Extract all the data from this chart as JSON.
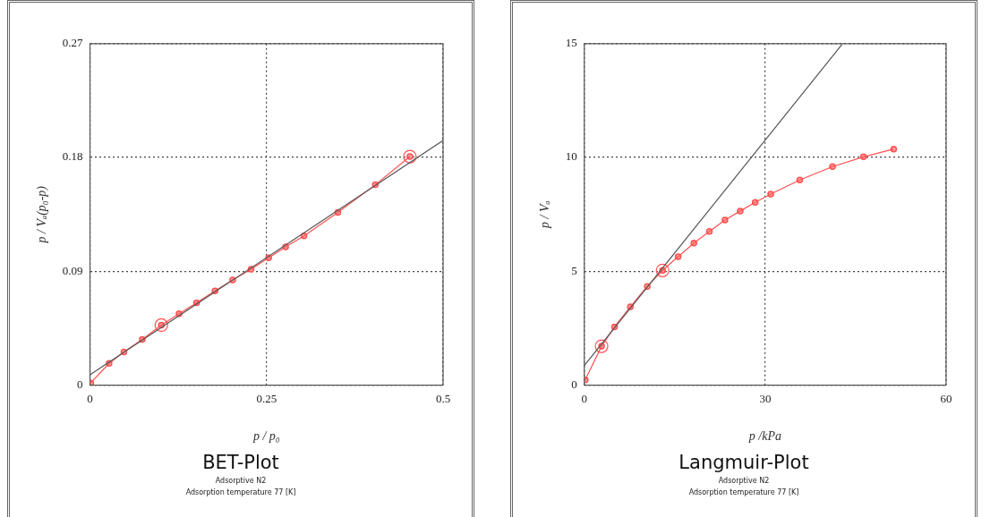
{
  "chart_data": [
    {
      "type": "line",
      "title": "BET-Plot",
      "xlabel": "p / p₀",
      "ylabel": "p / Vₐ(p₀-p)",
      "annotations": [
        "Adsorptive N2",
        "Adsorption temperature 77 [K]"
      ],
      "xlim": [
        0,
        0.5
      ],
      "xticks": [
        0,
        0.25,
        0.5
      ],
      "ylim": [
        0,
        0.27
      ],
      "yticks": [
        0,
        0.09,
        0.18,
        0.27
      ],
      "grid": true,
      "legend": false,
      "series": [
        {
          "color": "#ff5050",
          "marker": "circle",
          "x": [
            0.001,
            0.027,
            0.048,
            0.074,
            0.101,
            0.126,
            0.151,
            0.177,
            0.202,
            0.228,
            0.253,
            0.277,
            0.303,
            0.351,
            0.404,
            0.453
          ],
          "values": [
            0.0017,
            0.0172,
            0.0263,
            0.0362,
            0.0475,
            0.0564,
            0.0651,
            0.0745,
            0.0832,
            0.0916,
            0.1006,
            0.1093,
            0.118,
            0.1365,
            0.1584,
            0.1807
          ]
        },
        {
          "type": "scatter",
          "color": "#ff5050",
          "marker": "circle",
          "x": [
            0.101,
            0.453
          ],
          "values": [
            0.0475,
            0.1807
          ]
        },
        {
          "type": "line",
          "color": "#555555",
          "marker": "none",
          "x": [
            0,
            0.5
          ],
          "values": [
            0.0082,
            0.1934
          ]
        }
      ]
    },
    {
      "type": "line",
      "title": "Langmuir-Plot",
      "xlabel": "p /kPa",
      "ylabel": "p / Vₐ",
      "annotations": [
        "Adsorptive N2",
        "Adsorption temperature 77 [K]"
      ],
      "xlim": [
        0,
        60
      ],
      "xticks": [
        0,
        30,
        60
      ],
      "ylim": [
        0,
        15
      ],
      "yticks": [
        0,
        5,
        10,
        15
      ],
      "grid": true,
      "legend": false,
      "series": [
        {
          "color": "#ff5050",
          "marker": "circle",
          "x": [
            0.14,
            2.86,
            5.0,
            7.63,
            10.44,
            12.97,
            15.55,
            18.17,
            20.74,
            23.32,
            25.85,
            28.33,
            30.9,
            35.72,
            41.16,
            46.3,
            51.3
          ],
          "values": [
            0.23,
            1.71,
            2.56,
            3.44,
            4.34,
            5.04,
            5.64,
            6.24,
            6.75,
            7.25,
            7.65,
            8.03,
            8.39,
            9.01,
            9.6,
            10.03,
            10.37
          ]
        },
        {
          "type": "scatter",
          "color": "#ff5050",
          "marker": "circle",
          "x": [
            2.86,
            12.97
          ],
          "values": [
            1.71,
            5.04
          ]
        },
        {
          "type": "line",
          "color": "#555555",
          "marker": "none",
          "x": [
            0,
            42.73
          ],
          "values": [
            0.86,
            14.97
          ]
        }
      ]
    }
  ]
}
